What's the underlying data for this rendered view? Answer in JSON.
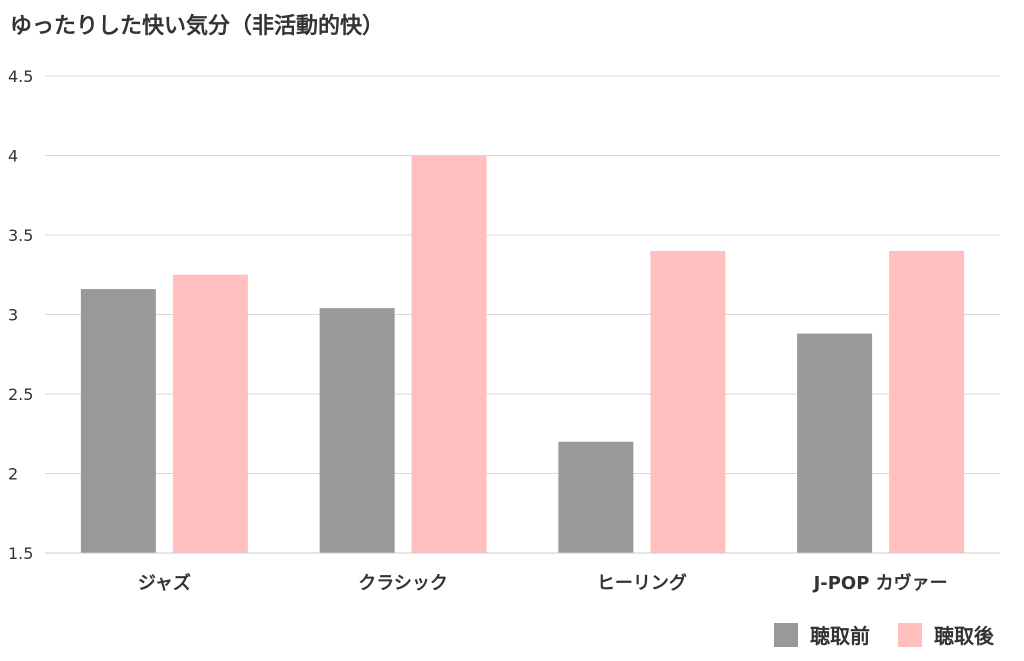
{
  "chart_data": {
    "type": "bar",
    "title": "ゆったりした快い気分（非活動的快）",
    "categories": [
      "ジャズ",
      "クラシック",
      "ヒーリング",
      "J-POP カヴァー"
    ],
    "series": [
      {
        "name": "聴取前",
        "color": "#999999",
        "values": [
          3.16,
          3.04,
          2.2,
          2.88
        ]
      },
      {
        "name": "聴取後",
        "color": "#ffc0bf",
        "values": [
          3.25,
          4.0,
          3.4,
          3.4
        ]
      }
    ],
    "ylim": [
      1.5,
      4.5
    ],
    "yticks": [
      "1.5",
      "2",
      "2.5",
      "3",
      "3.5",
      "4",
      "4.5"
    ],
    "grid": true,
    "legend_position": "bottom-right"
  }
}
